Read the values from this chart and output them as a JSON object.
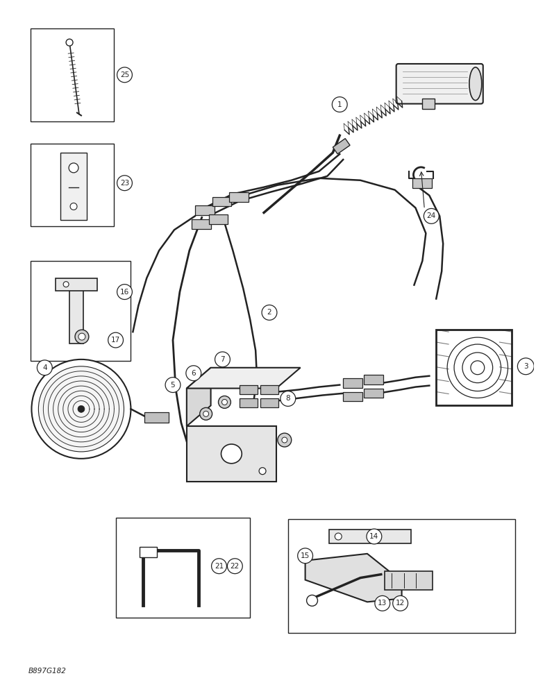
{
  "figure_id": "B897G182",
  "background_color": "#ffffff",
  "line_color": "#222222",
  "figsize": [
    7.72,
    10.0
  ],
  "dpi": 100
}
